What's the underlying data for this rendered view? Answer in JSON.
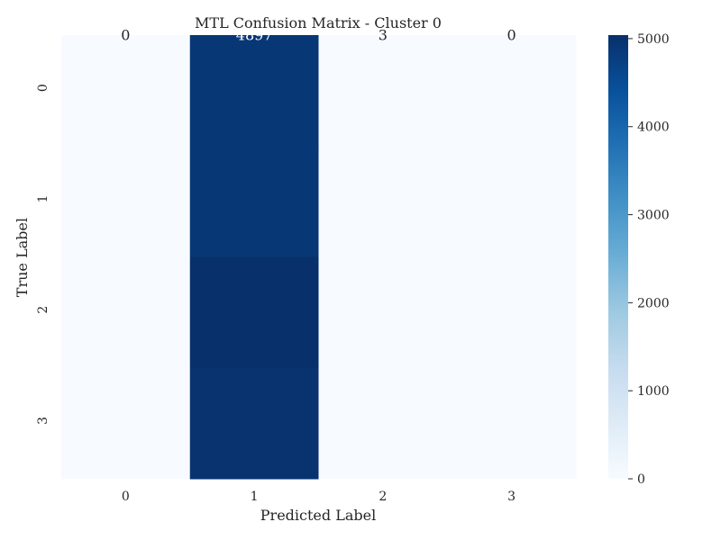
{
  "chart_data": {
    "type": "heatmap",
    "title": "MTL Confusion Matrix - Cluster 0",
    "xlabel": "Predicted Label",
    "ylabel": "True Label",
    "x_categories": [
      "0",
      "1",
      "2",
      "3"
    ],
    "y_categories": [
      "0",
      "1",
      "2",
      "3"
    ],
    "values": [
      [
        0,
        4897,
        3,
        0
      ],
      [
        0,
        4900,
        0,
        0
      ],
      [
        0,
        5040,
        0,
        0
      ],
      [
        0,
        4990,
        0,
        0
      ]
    ],
    "annotations": [
      [
        "0",
        "4897",
        "3",
        "0"
      ],
      [
        "",
        "",
        "",
        ""
      ],
      [
        "",
        "",
        "",
        ""
      ],
      [
        "",
        "",
        "",
        ""
      ]
    ],
    "colorbar": {
      "min": 0,
      "max": 5040,
      "ticks": [
        0,
        1000,
        2000,
        3000,
        4000,
        5000
      ],
      "tick_labels": [
        "0",
        "1000",
        "2000",
        "3000",
        "4000",
        "5000"
      ],
      "colormap": "Blues"
    },
    "colors": {
      "low": "#f7fbff",
      "high": "#08306b",
      "annotation_dark": "#262626",
      "annotation_light": "#ffffff"
    }
  }
}
